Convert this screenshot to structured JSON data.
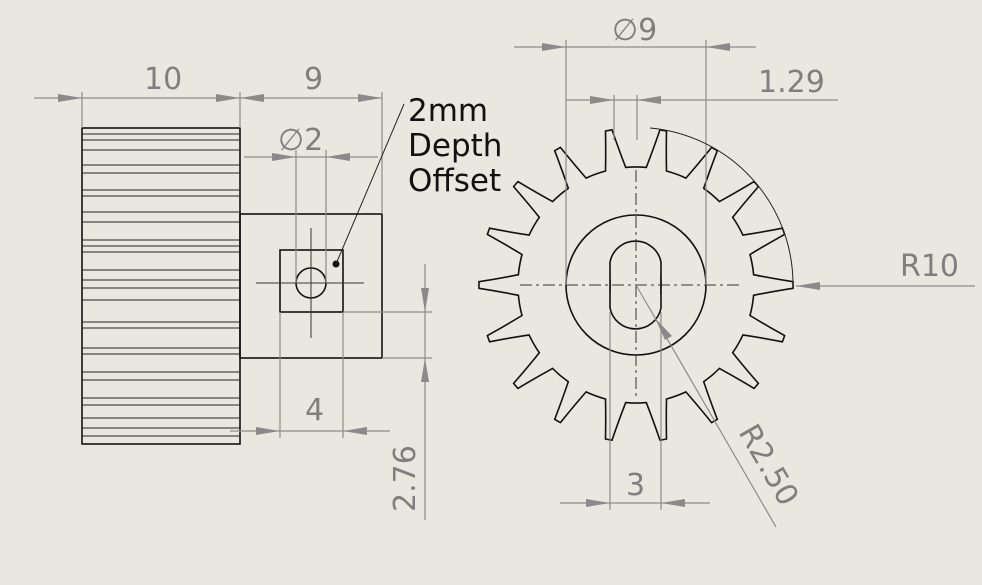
{
  "sheet": {
    "background": "#e8e8e0",
    "line_color": "#111111",
    "dimension_color": "#7f7f7f"
  },
  "side_view": {
    "dims": {
      "gear_width": "10",
      "hub_length": "9",
      "hole_diameter": "∅2",
      "square_width": "4",
      "hole_offset": "2.76"
    },
    "note": {
      "line1": "2mm",
      "line2": "Depth",
      "line3": "Offset"
    }
  },
  "front_view": {
    "dims": {
      "bore_diameter": "∅9",
      "tooth_width": "1.29",
      "outer_radius": "R10",
      "flat_width": "3",
      "shaft_radius": "R2.50"
    },
    "teeth": 18
  }
}
